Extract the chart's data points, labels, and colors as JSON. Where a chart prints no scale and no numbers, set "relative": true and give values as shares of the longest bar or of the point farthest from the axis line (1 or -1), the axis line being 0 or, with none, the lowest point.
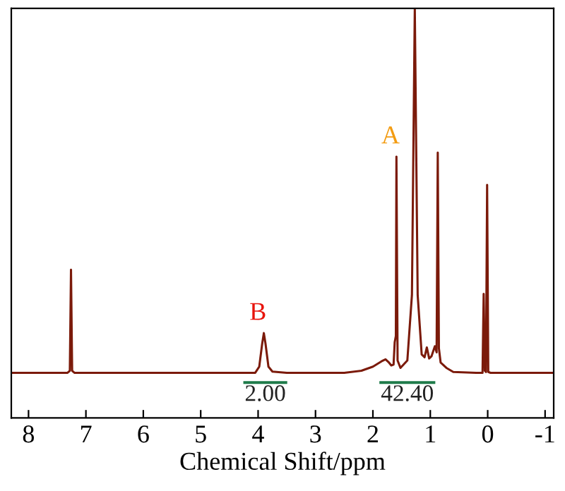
{
  "chart_data": {
    "type": "line",
    "xlabel": "Chemical Shift/ppm",
    "relative": true,
    "xlim": [
      8.3,
      -1.15
    ],
    "xticks": [
      8,
      7,
      6,
      5,
      4,
      3,
      2,
      1,
      0,
      {
        "value": -1,
        "label": "-1"
      }
    ],
    "tick_labels": "x",
    "grid": false,
    "marker": "none",
    "line_style": "solid",
    "series": [
      {
        "color": "#7b1a0a",
        "x": [
          8.3,
          7.32,
          7.28,
          7.26,
          7.24,
          7.2,
          4.05,
          3.98,
          3.93,
          3.9,
          3.87,
          3.82,
          3.75,
          3.5,
          2.5,
          2.2,
          2.0,
          1.85,
          1.78,
          1.72,
          1.68,
          1.64,
          1.62,
          1.6,
          1.59,
          1.57,
          1.52,
          1.4,
          1.32,
          1.27,
          1.22,
          1.15,
          1.1,
          1.06,
          1.02,
          0.98,
          0.92,
          0.89,
          0.87,
          0.85,
          0.82,
          0.78,
          0.72,
          0.6,
          0.2,
          0.09,
          0.07,
          0.05,
          0.03,
          0.01,
          -0.01,
          -0.05,
          -1.15
        ],
        "values": [
          0.11,
          0.11,
          0.115,
          0.362,
          0.115,
          0.11,
          0.11,
          0.125,
          0.18,
          0.207,
          0.18,
          0.125,
          0.113,
          0.11,
          0.11,
          0.115,
          0.125,
          0.138,
          0.143,
          0.135,
          0.128,
          0.13,
          0.185,
          0.2,
          0.638,
          0.14,
          0.122,
          0.14,
          0.3,
          1.0,
          0.3,
          0.155,
          0.148,
          0.172,
          0.145,
          0.15,
          0.175,
          0.16,
          0.648,
          0.17,
          0.135,
          0.13,
          0.122,
          0.112,
          0.11,
          0.11,
          0.303,
          0.115,
          0.112,
          0.569,
          0.112,
          0.11,
          0.11
        ]
      }
    ],
    "annotations": [
      {
        "text": "A",
        "x": 1.59,
        "y": 0.638
      },
      {
        "text": "B",
        "x": 3.9,
        "y": 0.207
      },
      {
        "text": "2.00",
        "x": 3.875,
        "y": 0.11
      },
      {
        "text": "42.40",
        "x": 1.4,
        "y": 0.14
      }
    ]
  }
}
